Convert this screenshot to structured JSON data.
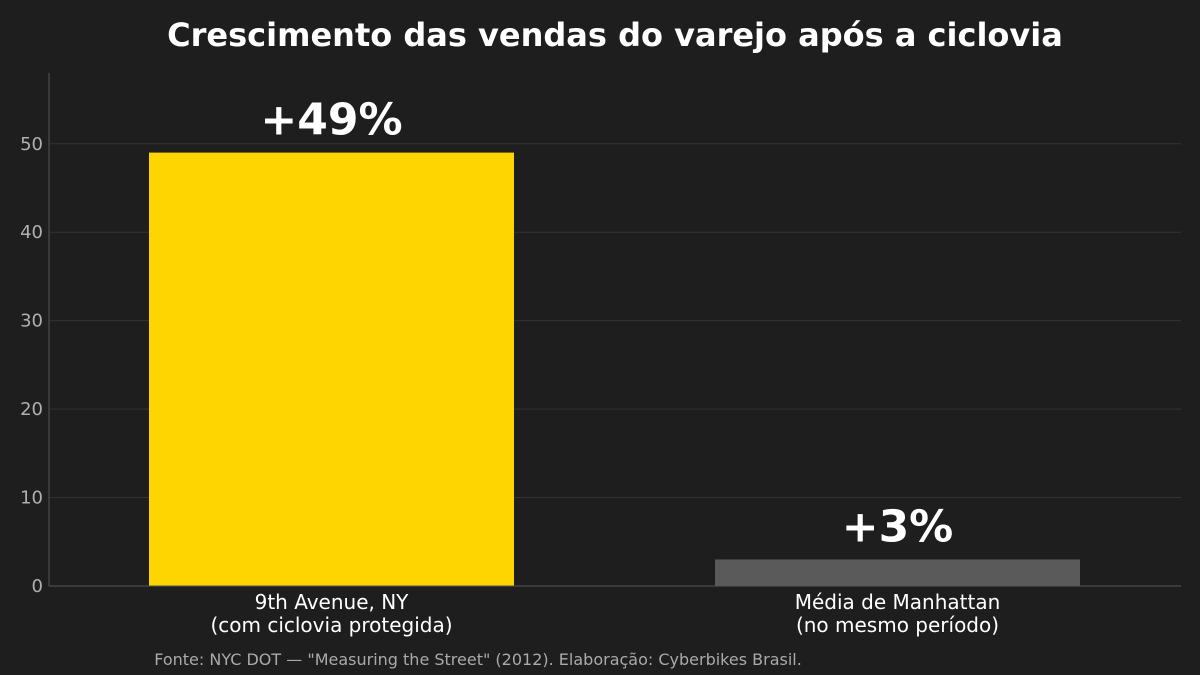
{
  "chart_data": {
    "type": "bar",
    "title": "Crescimento das vendas do varejo após a ciclovia",
    "categories": [
      [
        "9th Avenue, NY",
        "(com ciclovia protegida)"
      ],
      [
        "Média de Manhattan",
        "(no mesmo período)"
      ]
    ],
    "values": [
      49,
      3
    ],
    "data_labels": [
      "+49%",
      "+3%"
    ],
    "colors": [
      "#FFD500",
      "#5a5a5a"
    ],
    "yticks": [
      "0",
      "10",
      "20",
      "30",
      "40",
      "50"
    ],
    "ylim": [
      0,
      58
    ],
    "grid": true,
    "xlabel": "",
    "ylabel": ""
  },
  "source": "Fonte: NYC DOT — \"Measuring the Street\" (2012). Elaboração: Cyberbikes Brasil.",
  "colors": {
    "background": "#1e1e1e",
    "text": "#ffffff",
    "gridline": "#333333"
  }
}
